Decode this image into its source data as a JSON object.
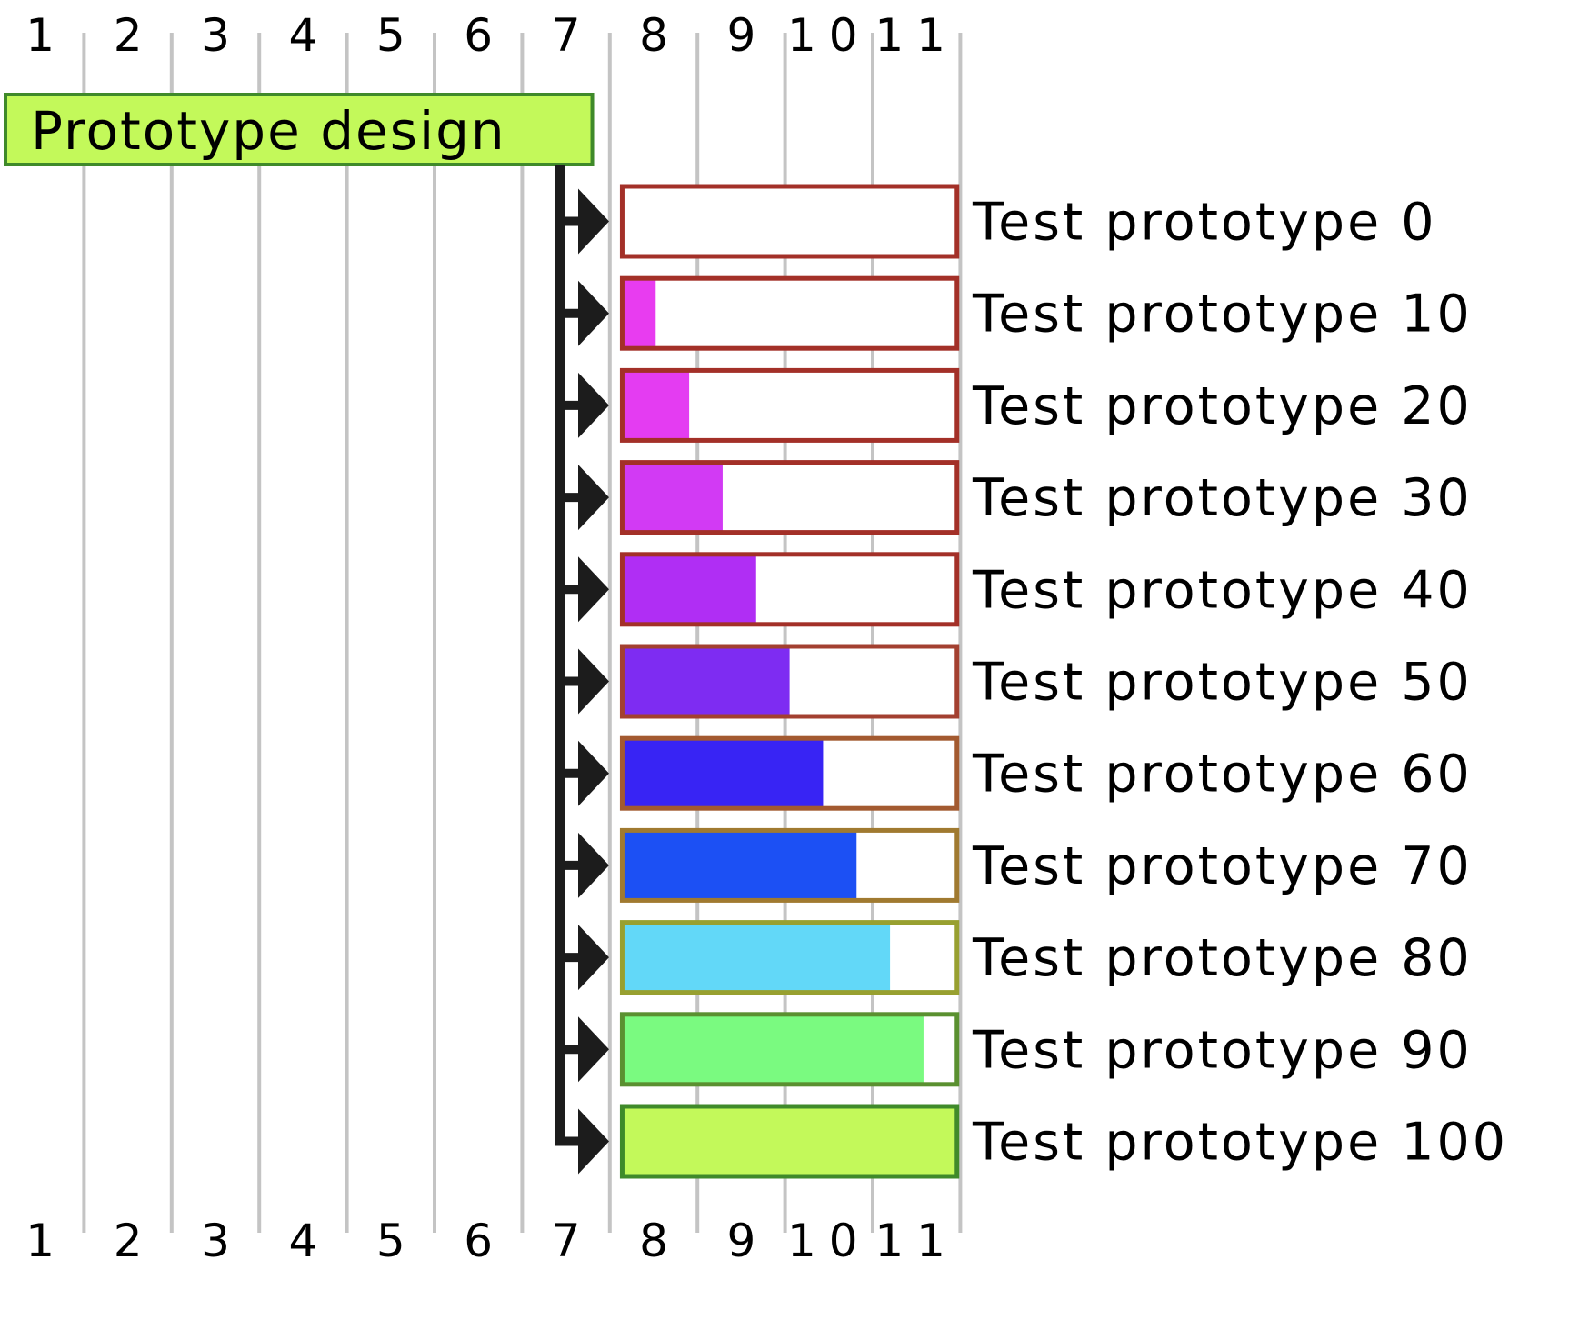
{
  "chart_data": {
    "type": "gantt",
    "x_ticks": [
      "1",
      "2",
      "3",
      "4",
      "5",
      "6",
      "7",
      "8",
      "9",
      "10",
      "11"
    ],
    "x_range": [
      0,
      11
    ],
    "grid": true,
    "parent_task": {
      "name": "Prototype design",
      "start": 0,
      "end": 6.8,
      "fill": "#c3f95a",
      "border": "#3f8a2a"
    },
    "tasks": [
      {
        "name": "Test prototype 0",
        "start": 7.1,
        "end": 10.9,
        "progress": 0,
        "fill": "#e83cf0",
        "border": "#a33028"
      },
      {
        "name": "Test prototype 10",
        "start": 7.1,
        "end": 10.9,
        "progress": 10,
        "fill": "#e83cf0",
        "border": "#a33028"
      },
      {
        "name": "Test prototype 20",
        "start": 7.1,
        "end": 10.9,
        "progress": 20,
        "fill": "#e43cf2",
        "border": "#a33028"
      },
      {
        "name": "Test prototype 30",
        "start": 7.1,
        "end": 10.9,
        "progress": 30,
        "fill": "#d23af4",
        "border": "#a33028"
      },
      {
        "name": "Test prototype 40",
        "start": 7.1,
        "end": 10.9,
        "progress": 40,
        "fill": "#b02ef4",
        "border": "#a33028"
      },
      {
        "name": "Test prototype 50",
        "start": 7.1,
        "end": 10.9,
        "progress": 50,
        "fill": "#7e2cf2",
        "border": "#a34030"
      },
      {
        "name": "Test prototype 60",
        "start": 7.1,
        "end": 10.9,
        "progress": 60,
        "fill": "#3824f4",
        "border": "#a35a30"
      },
      {
        "name": "Test prototype 70",
        "start": 7.1,
        "end": 10.9,
        "progress": 70,
        "fill": "#1c50f4",
        "border": "#a07a30"
      },
      {
        "name": "Test prototype 80",
        "start": 7.1,
        "end": 10.9,
        "progress": 80,
        "fill": "#62d8f8",
        "border": "#98a030"
      },
      {
        "name": "Test prototype 90",
        "start": 7.1,
        "end": 10.9,
        "progress": 90,
        "fill": "#7afa80",
        "border": "#5a9030"
      },
      {
        "name": "Test prototype 100",
        "start": 7.1,
        "end": 10.9,
        "progress": 100,
        "fill": "#c3f95a",
        "border": "#3f8a2a"
      }
    ]
  }
}
